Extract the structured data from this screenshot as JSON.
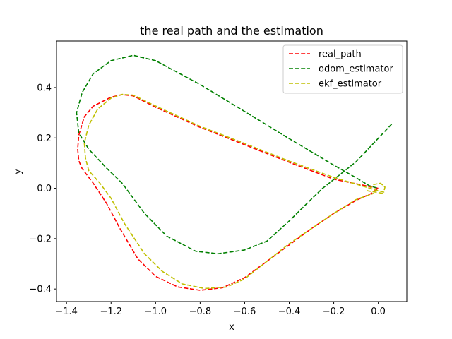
{
  "chart_data": {
    "type": "line",
    "title": "the real path and the estimation",
    "xlabel": "x",
    "ylabel": "y",
    "xlim": [
      -1.445,
      0.128
    ],
    "ylim": [
      -0.45,
      0.585
    ],
    "xticks": [
      -1.4,
      -1.2,
      -1.0,
      -0.8,
      -0.6,
      -0.4,
      -0.2,
      0.0
    ],
    "xtick_labels": [
      "−1.4",
      "−1.2",
      "−1.0",
      "−0.8",
      "−0.6",
      "−0.4",
      "−0.2",
      "0.0"
    ],
    "yticks": [
      -0.4,
      -0.2,
      0.0,
      0.2,
      0.4
    ],
    "ytick_labels": [
      "−0.4",
      "−0.2",
      "0.0",
      "0.2",
      "0.4"
    ],
    "grid": false,
    "legend_position": "top-right",
    "series": [
      {
        "name": "real_path",
        "color": "#ff0000",
        "dash": "dashed",
        "points": [
          [
            0.0,
            0.0
          ],
          [
            -0.2,
            0.036
          ],
          [
            -0.4,
            0.103
          ],
          [
            -0.6,
            0.173
          ],
          [
            -0.8,
            0.242
          ],
          [
            -1.0,
            0.322
          ],
          [
            -1.1,
            0.367
          ],
          [
            -1.15,
            0.372
          ],
          [
            -1.2,
            0.362
          ],
          [
            -1.28,
            0.326
          ],
          [
            -1.32,
            0.284
          ],
          [
            -1.345,
            0.21
          ],
          [
            -1.35,
            0.155
          ],
          [
            -1.345,
            0.11
          ],
          [
            -1.33,
            0.078
          ],
          [
            -1.28,
            0.02
          ],
          [
            -1.22,
            -0.06
          ],
          [
            -1.16,
            -0.16
          ],
          [
            -1.08,
            -0.28
          ],
          [
            -1.0,
            -0.35
          ],
          [
            -0.9,
            -0.392
          ],
          [
            -0.8,
            -0.405
          ],
          [
            -0.7,
            -0.395
          ],
          [
            -0.6,
            -0.355
          ],
          [
            -0.5,
            -0.29
          ],
          [
            -0.4,
            -0.225
          ],
          [
            -0.3,
            -0.16
          ],
          [
            -0.2,
            -0.1
          ],
          [
            -0.1,
            -0.048
          ],
          [
            -0.03,
            -0.02
          ],
          [
            0.0,
            0.0
          ]
        ]
      },
      {
        "name": "odom_estimator",
        "color": "#008000",
        "dash": "dashed",
        "points": [
          [
            0.06,
            0.255
          ],
          [
            -0.1,
            0.105
          ],
          [
            -0.2,
            0.035
          ],
          [
            -0.25,
            0.0
          ],
          [
            -0.32,
            -0.06
          ],
          [
            -0.4,
            -0.13
          ],
          [
            -0.5,
            -0.21
          ],
          [
            -0.6,
            -0.245
          ],
          [
            -0.72,
            -0.26
          ],
          [
            -0.82,
            -0.25
          ],
          [
            -0.95,
            -0.19
          ],
          [
            -1.05,
            -0.1
          ],
          [
            -1.15,
            0.02
          ],
          [
            -1.22,
            0.08
          ],
          [
            -1.3,
            0.155
          ],
          [
            -1.345,
            0.22
          ],
          [
            -1.355,
            0.3
          ],
          [
            -1.33,
            0.38
          ],
          [
            -1.28,
            0.455
          ],
          [
            -1.2,
            0.507
          ],
          [
            -1.1,
            0.528
          ],
          [
            -1.0,
            0.507
          ],
          [
            -0.8,
            0.412
          ],
          [
            -0.6,
            0.305
          ],
          [
            -0.4,
            0.197
          ],
          [
            -0.2,
            0.092
          ],
          [
            -0.1,
            0.042
          ],
          [
            -0.04,
            0.01
          ],
          [
            0.0,
            0.0
          ]
        ]
      },
      {
        "name": "ekf_estimator",
        "color": "#bfbf00",
        "dash": "dashed",
        "points": [
          [
            0.02,
            -0.02
          ],
          [
            -0.05,
            -0.01
          ],
          [
            -0.02,
            0.015
          ],
          [
            0.01,
            0.02
          ],
          [
            0.03,
            0.005
          ],
          [
            0.025,
            -0.015
          ],
          [
            0.0,
            -0.01
          ],
          [
            -0.2,
            0.043
          ],
          [
            -0.4,
            0.108
          ],
          [
            -0.6,
            0.178
          ],
          [
            -0.8,
            0.246
          ],
          [
            -1.0,
            0.327
          ],
          [
            -1.1,
            0.37
          ],
          [
            -1.15,
            0.373
          ],
          [
            -1.2,
            0.358
          ],
          [
            -1.26,
            0.315
          ],
          [
            -1.3,
            0.25
          ],
          [
            -1.32,
            0.18
          ],
          [
            -1.315,
            0.12
          ],
          [
            -1.3,
            0.07
          ],
          [
            -1.25,
            0.02
          ],
          [
            -1.2,
            -0.04
          ],
          [
            -1.14,
            -0.14
          ],
          [
            -1.05,
            -0.26
          ],
          [
            -0.97,
            -0.33
          ],
          [
            -0.88,
            -0.38
          ],
          [
            -0.78,
            -0.398
          ],
          [
            -0.68,
            -0.392
          ],
          [
            -0.6,
            -0.36
          ],
          [
            -0.5,
            -0.29
          ],
          [
            -0.4,
            -0.22
          ],
          [
            -0.3,
            -0.16
          ],
          [
            -0.2,
            -0.1
          ],
          [
            -0.1,
            -0.045
          ],
          [
            -0.02,
            -0.02
          ]
        ]
      }
    ]
  }
}
